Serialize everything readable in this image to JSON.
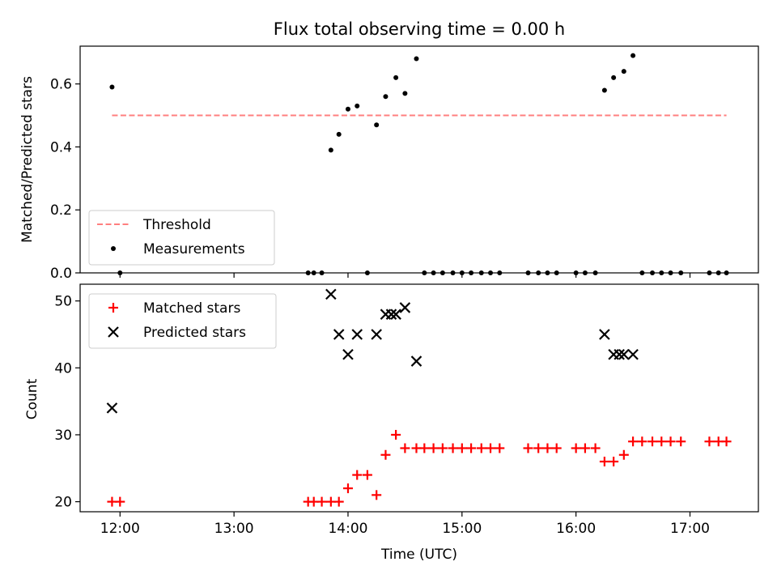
{
  "chart_data": {
    "type": "scatter",
    "title": "Flux total observing time = 0.00 h",
    "xlabel": "Time (UTC)",
    "x_unit": "decimal hours UTC",
    "xlim": [
      11.65,
      17.6
    ],
    "xticks": [
      12,
      13,
      14,
      15,
      16,
      17
    ],
    "xtick_labels": [
      "12:00",
      "13:00",
      "14:00",
      "15:00",
      "16:00",
      "17:00"
    ],
    "panels": [
      {
        "ylabel": "Matched/Predicted stars",
        "ylim": [
          0,
          0.72
        ],
        "yticks": [
          0.0,
          0.2,
          0.4,
          0.6
        ],
        "ytick_labels": [
          "0.0",
          "0.2",
          "0.4",
          "0.6"
        ],
        "legend_position": "lower-left",
        "series": [
          {
            "name": "Threshold",
            "kind": "dashed-line",
            "color": "#ff7f7f",
            "x": [
              11.93,
              17.32
            ],
            "y": [
              0.5,
              0.5
            ]
          },
          {
            "name": "Measurements",
            "kind": "dot",
            "color": "#000000",
            "x": [
              11.93,
              12.0,
              13.65,
              13.7,
              13.77,
              13.85,
              13.92,
              14.0,
              14.08,
              14.17,
              14.25,
              14.33,
              14.42,
              14.5,
              14.6,
              14.67,
              14.75,
              14.83,
              14.92,
              15.0,
              15.08,
              15.17,
              15.25,
              15.33,
              15.58,
              15.67,
              15.75,
              15.83,
              16.0,
              16.08,
              16.17,
              16.25,
              16.33,
              16.42,
              16.5,
              16.58,
              16.67,
              16.75,
              16.83,
              16.92,
              17.17,
              17.25,
              17.32
            ],
            "y": [
              0.59,
              0.0,
              0.0,
              0.0,
              0.0,
              0.39,
              0.44,
              0.52,
              0.53,
              0.0,
              0.47,
              0.56,
              0.62,
              0.57,
              0.68,
              0.0,
              0.0,
              0.0,
              0.0,
              0.0,
              0.0,
              0.0,
              0.0,
              0.0,
              0.0,
              0.0,
              0.0,
              0.0,
              0.0,
              0.0,
              0.0,
              0.58,
              0.62,
              0.64,
              0.69,
              0.0,
              0.0,
              0.0,
              0.0,
              0.0,
              0.0,
              0.0,
              0.0
            ]
          }
        ]
      },
      {
        "ylabel": "Count",
        "ylim": [
          18.5,
          52.5
        ],
        "yticks": [
          20,
          30,
          40,
          50
        ],
        "ytick_labels": [
          "20",
          "30",
          "40",
          "50"
        ],
        "legend_position": "upper-left",
        "series": [
          {
            "name": "Matched stars",
            "kind": "plus",
            "color": "#ff0000",
            "x": [
              11.93,
              12.0,
              13.65,
              13.7,
              13.77,
              13.85,
              13.92,
              14.0,
              14.08,
              14.17,
              14.25,
              14.33,
              14.42,
              14.5,
              14.6,
              14.67,
              14.75,
              14.83,
              14.92,
              15.0,
              15.08,
              15.17,
              15.25,
              15.33,
              15.58,
              15.67,
              15.75,
              15.83,
              16.0,
              16.08,
              16.17,
              16.25,
              16.33,
              16.42,
              16.5,
              16.58,
              16.67,
              16.75,
              16.83,
              16.92,
              17.17,
              17.25,
              17.32
            ],
            "y": [
              20,
              20,
              20,
              20,
              20,
              20,
              20,
              22,
              24,
              24,
              21,
              27,
              30,
              28,
              28,
              28,
              28,
              28,
              28,
              28,
              28,
              28,
              28,
              28,
              28,
              28,
              28,
              28,
              28,
              28,
              28,
              26,
              26,
              27,
              29,
              29,
              29,
              29,
              29,
              29,
              29,
              29,
              29
            ]
          },
          {
            "name": "Predicted stars",
            "kind": "x",
            "color": "#000000",
            "x": [
              11.93,
              13.85,
              13.92,
              14.0,
              14.08,
              14.25,
              14.33,
              14.38,
              14.42,
              14.5,
              14.6,
              16.25,
              16.33,
              16.38,
              16.42,
              16.5
            ],
            "y": [
              34,
              51,
              45,
              42,
              45,
              45,
              48,
              48,
              48,
              49,
              41,
              45,
              42,
              42,
              42,
              42
            ]
          }
        ]
      }
    ]
  }
}
